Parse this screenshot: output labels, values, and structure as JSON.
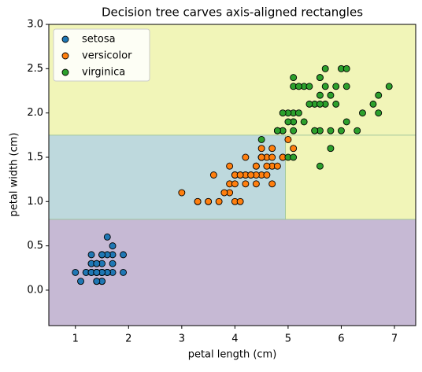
{
  "chart_data": {
    "type": "scatter",
    "title": "Decision tree carves axis-aligned rectangles",
    "xlabel": "petal length (cm)",
    "ylabel": "petal width (cm)",
    "xlim": [
      0.5,
      7.4
    ],
    "ylim": [
      -0.4,
      3.0
    ],
    "xticks": [
      1,
      2,
      3,
      4,
      5,
      6,
      7
    ],
    "yticks": [
      {
        "value": 0,
        "label": "0.0"
      },
      0.5,
      {
        "value": 1,
        "label": "1.0"
      },
      1.5,
      {
        "value": 2,
        "label": "2.0"
      },
      2.5,
      {
        "value": 3,
        "label": "3.0"
      }
    ],
    "legend": "upper left",
    "regions": [
      {
        "x": [
          0.5,
          7.4
        ],
        "y": [
          -0.4,
          0.8
        ],
        "color": "#c6b9d4"
      },
      {
        "x": [
          0.5,
          4.95
        ],
        "y": [
          0.8,
          1.75
        ],
        "color": "#bed9dd"
      },
      {
        "x": [
          4.95,
          7.4
        ],
        "y": [
          0.8,
          1.75
        ],
        "color": "#f1f5b8"
      },
      {
        "x": [
          0.5,
          7.4
        ],
        "y": [
          1.75,
          3.0
        ],
        "color": "#f1f5b8"
      }
    ],
    "series": [
      {
        "name": "setosa",
        "color": "#1f77b4",
        "x": [
          1.4,
          1.4,
          1.3,
          1.5,
          1.4,
          1.7,
          1.4,
          1.5,
          1.4,
          1.5,
          1.5,
          1.6,
          1.4,
          1.1,
          1.2,
          1.5,
          1.3,
          1.4,
          1.7,
          1.5,
          1.7,
          1.5,
          1.0,
          1.7,
          1.9,
          1.6,
          1.6,
          1.5,
          1.4,
          1.6,
          1.6,
          1.5,
          1.5,
          1.4,
          1.5,
          1.2,
          1.3,
          1.4,
          1.3,
          1.5,
          1.3,
          1.3,
          1.3,
          1.6,
          1.9,
          1.4,
          1.6,
          1.4,
          1.5,
          1.4
        ],
        "values": [
          0.2,
          0.2,
          0.2,
          0.2,
          0.2,
          0.4,
          0.3,
          0.2,
          0.2,
          0.1,
          0.2,
          0.2,
          0.1,
          0.1,
          0.2,
          0.4,
          0.4,
          0.3,
          0.3,
          0.3,
          0.2,
          0.4,
          0.2,
          0.5,
          0.2,
          0.2,
          0.4,
          0.2,
          0.2,
          0.2,
          0.2,
          0.4,
          0.1,
          0.2,
          0.2,
          0.2,
          0.2,
          0.1,
          0.2,
          0.2,
          0.3,
          0.3,
          0.2,
          0.6,
          0.4,
          0.3,
          0.2,
          0.2,
          0.2,
          0.2
        ]
      },
      {
        "name": "versicolor",
        "color": "#ff7f0e",
        "x": [
          4.7,
          4.5,
          4.9,
          4.0,
          4.6,
          4.5,
          4.7,
          3.3,
          4.6,
          3.9,
          3.5,
          4.2,
          4.0,
          4.7,
          3.6,
          4.4,
          4.5,
          4.1,
          4.5,
          3.9,
          4.8,
          4.0,
          4.9,
          4.7,
          4.3,
          4.4,
          4.8,
          5.0,
          4.5,
          3.5,
          3.8,
          3.7,
          3.9,
          5.1,
          4.5,
          4.5,
          4.7,
          4.4,
          4.1,
          4.0,
          4.4,
          4.6,
          4.0,
          3.3,
          4.2,
          4.2,
          4.2,
          4.3,
          3.0,
          4.1
        ],
        "values": [
          1.4,
          1.5,
          1.5,
          1.3,
          1.5,
          1.3,
          1.6,
          1.0,
          1.3,
          1.4,
          1.0,
          1.5,
          1.0,
          1.4,
          1.3,
          1.4,
          1.5,
          1.0,
          1.5,
          1.1,
          1.8,
          1.3,
          1.5,
          1.2,
          1.3,
          1.4,
          1.4,
          1.7,
          1.5,
          1.0,
          1.1,
          1.0,
          1.2,
          1.6,
          1.5,
          1.6,
          1.5,
          1.3,
          1.3,
          1.3,
          1.2,
          1.4,
          1.2,
          1.0,
          1.3,
          1.2,
          1.3,
          1.3,
          1.1,
          1.3
        ]
      },
      {
        "name": "virginica",
        "color": "#2ca02c",
        "x": [
          6.0,
          5.1,
          5.9,
          5.6,
          5.8,
          6.6,
          4.5,
          6.3,
          5.8,
          6.1,
          5.1,
          5.3,
          5.5,
          5.0,
          5.1,
          5.3,
          5.5,
          6.7,
          6.9,
          5.0,
          5.7,
          4.9,
          6.7,
          4.9,
          5.7,
          6.0,
          4.8,
          4.9,
          5.6,
          5.8,
          6.1,
          6.4,
          5.6,
          5.1,
          5.6,
          6.1,
          5.6,
          5.5,
          4.8,
          5.4,
          5.6,
          5.1,
          5.1,
          5.9,
          5.7,
          5.2,
          5.0,
          5.2,
          5.4,
          5.1
        ],
        "values": [
          2.5,
          1.9,
          2.1,
          1.8,
          2.2,
          2.1,
          1.7,
          1.8,
          1.8,
          2.5,
          2.0,
          1.9,
          2.1,
          2.0,
          2.4,
          2.3,
          1.8,
          2.2,
          2.3,
          1.5,
          2.3,
          2.0,
          2.0,
          1.8,
          2.1,
          1.8,
          1.8,
          1.8,
          2.1,
          1.6,
          1.9,
          2.0,
          2.2,
          1.5,
          1.4,
          2.3,
          2.4,
          1.8,
          1.8,
          2.1,
          2.4,
          2.3,
          1.9,
          2.3,
          2.5,
          2.3,
          1.9,
          2.0,
          2.3,
          1.8
        ]
      }
    ]
  }
}
